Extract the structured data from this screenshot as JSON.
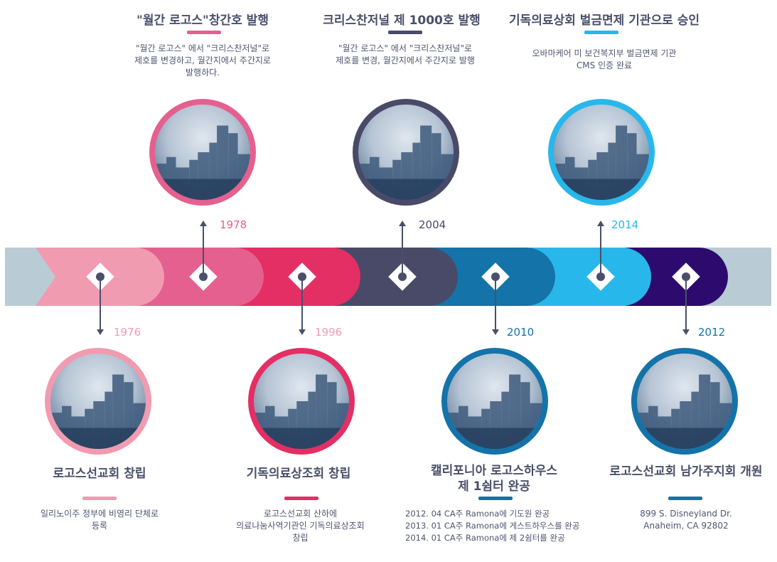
{
  "colors": {
    "band": "#b9ccd6",
    "pink_light": "#f19bb0",
    "pink": "#e5608f",
    "crimson": "#e42f64",
    "navy_gray": "#494a68",
    "teal_blue": "#1473a8",
    "sky": "#28b7ea",
    "indigo": "#2d0a6e",
    "text": "#4a4f6b"
  },
  "top_events": [
    {
      "year": "1978",
      "title": "\"월간 로고스\"창간호 발행",
      "desc": "\"월간 로고스\" 에서 \"크리스찬저널\"로\n제호를 변경하고, 월간지에서 주간지로\n발행하다."
    },
    {
      "year": "2004",
      "title": "크리스찬저널 제 1000호 발행",
      "desc": "\"월간 로고스\" 에서 \"크리스찬저널\"로\n제호를 변경, 월간지에서 주간지로 발행"
    },
    {
      "year": "2014",
      "title": "기독의료상회 벌금면제 기관으로 승인",
      "desc": "오바마케어 미 보건복지부 벌금면제 기관\nCMS 인증 완료"
    }
  ],
  "bottom_events": [
    {
      "year": "1976",
      "title": "로고스선교회 창립",
      "desc": "일리노이주 정부에 비영리 단체로\n등록"
    },
    {
      "year": "1996",
      "title": "기독의료상조회 창립",
      "desc": "로고스선교회 산하에\n의료나눔사역기관인 기독의료상조회\n창립"
    },
    {
      "year": "2010",
      "title": "캘리포니아 로고스하우스\n제 1쉼터 완공",
      "desc": "2012. 04   CA주 Ramona에 기도원 완공\n2013. 01   CA주 Ramona에 게스트하우스를 완공\n2014. 01   CA주 Ramona에 제 2쉼터를 완공"
    },
    {
      "year": "2012",
      "title": "로고스선교회 남가주지회 개원",
      "desc": "899 S. Disneyland Dr.\nAnaheim, CA 92802"
    }
  ]
}
